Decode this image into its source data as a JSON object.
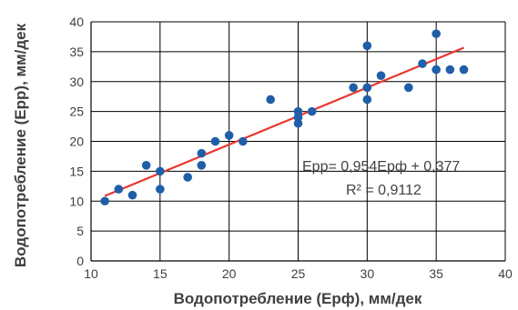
{
  "chart_data": {
    "type": "scatter",
    "title": "",
    "xlabel": "Водопотребление (Ерф), мм/дек",
    "ylabel": "Водопотребление (Ерр), мм/дек",
    "xlim": [
      10,
      40
    ],
    "ylim": [
      0,
      40
    ],
    "xticks": [
      10,
      15,
      20,
      25,
      30,
      35,
      40
    ],
    "yticks": [
      0,
      5,
      10,
      15,
      20,
      25,
      30,
      35,
      40
    ],
    "grid": true,
    "point_color": "#1F5FA8",
    "trend_color": "#E8372E",
    "points": [
      [
        11,
        10
      ],
      [
        12,
        12
      ],
      [
        13,
        11
      ],
      [
        14,
        16
      ],
      [
        15,
        15
      ],
      [
        15,
        12
      ],
      [
        17,
        14
      ],
      [
        18,
        16
      ],
      [
        18,
        18
      ],
      [
        19,
        20
      ],
      [
        20,
        21
      ],
      [
        21,
        20
      ],
      [
        23,
        27
      ],
      [
        25,
        23
      ],
      [
        25,
        24
      ],
      [
        25,
        25
      ],
      [
        26,
        25
      ],
      [
        29,
        29
      ],
      [
        30,
        27
      ],
      [
        30,
        29
      ],
      [
        30,
        36
      ],
      [
        31,
        31
      ],
      [
        33,
        29
      ],
      [
        34,
        33
      ],
      [
        35,
        38
      ],
      [
        35,
        32
      ],
      [
        36,
        32
      ],
      [
        37,
        32
      ]
    ],
    "trendline": {
      "slope": 0.954,
      "intercept": 0.377,
      "x_range": [
        11,
        37
      ]
    },
    "equation": "Ерр= 0,954Ерф + 0,377",
    "r_squared": "R² = 0,9112"
  }
}
